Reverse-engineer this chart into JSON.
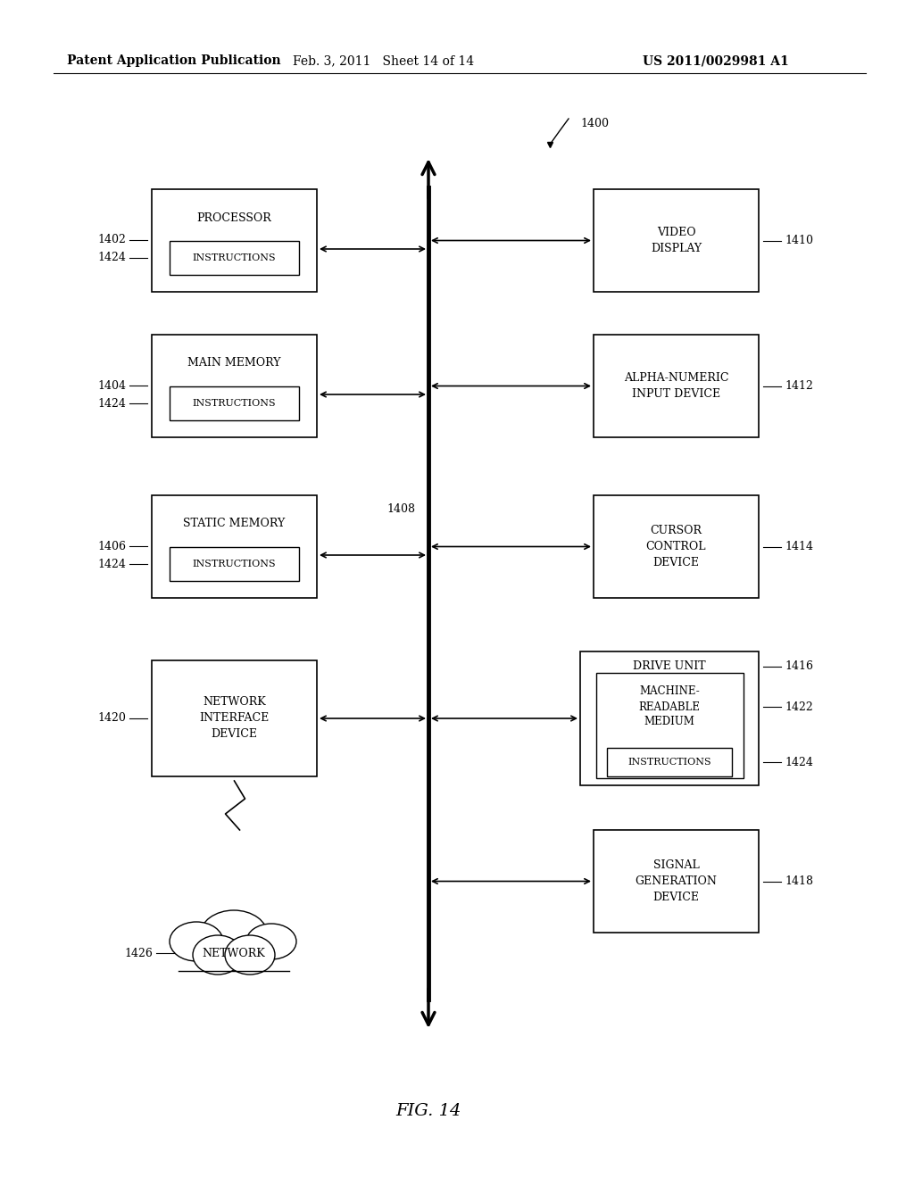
{
  "header_left": "Patent Application Publication",
  "header_mid": "Feb. 3, 2011   Sheet 14 of 14",
  "header_right": "US 2011/0029981 A1",
  "figure_label": "FIG. 14",
  "fig_number": "1400",
  "bus_label": "1408",
  "bg_color": "#ffffff"
}
